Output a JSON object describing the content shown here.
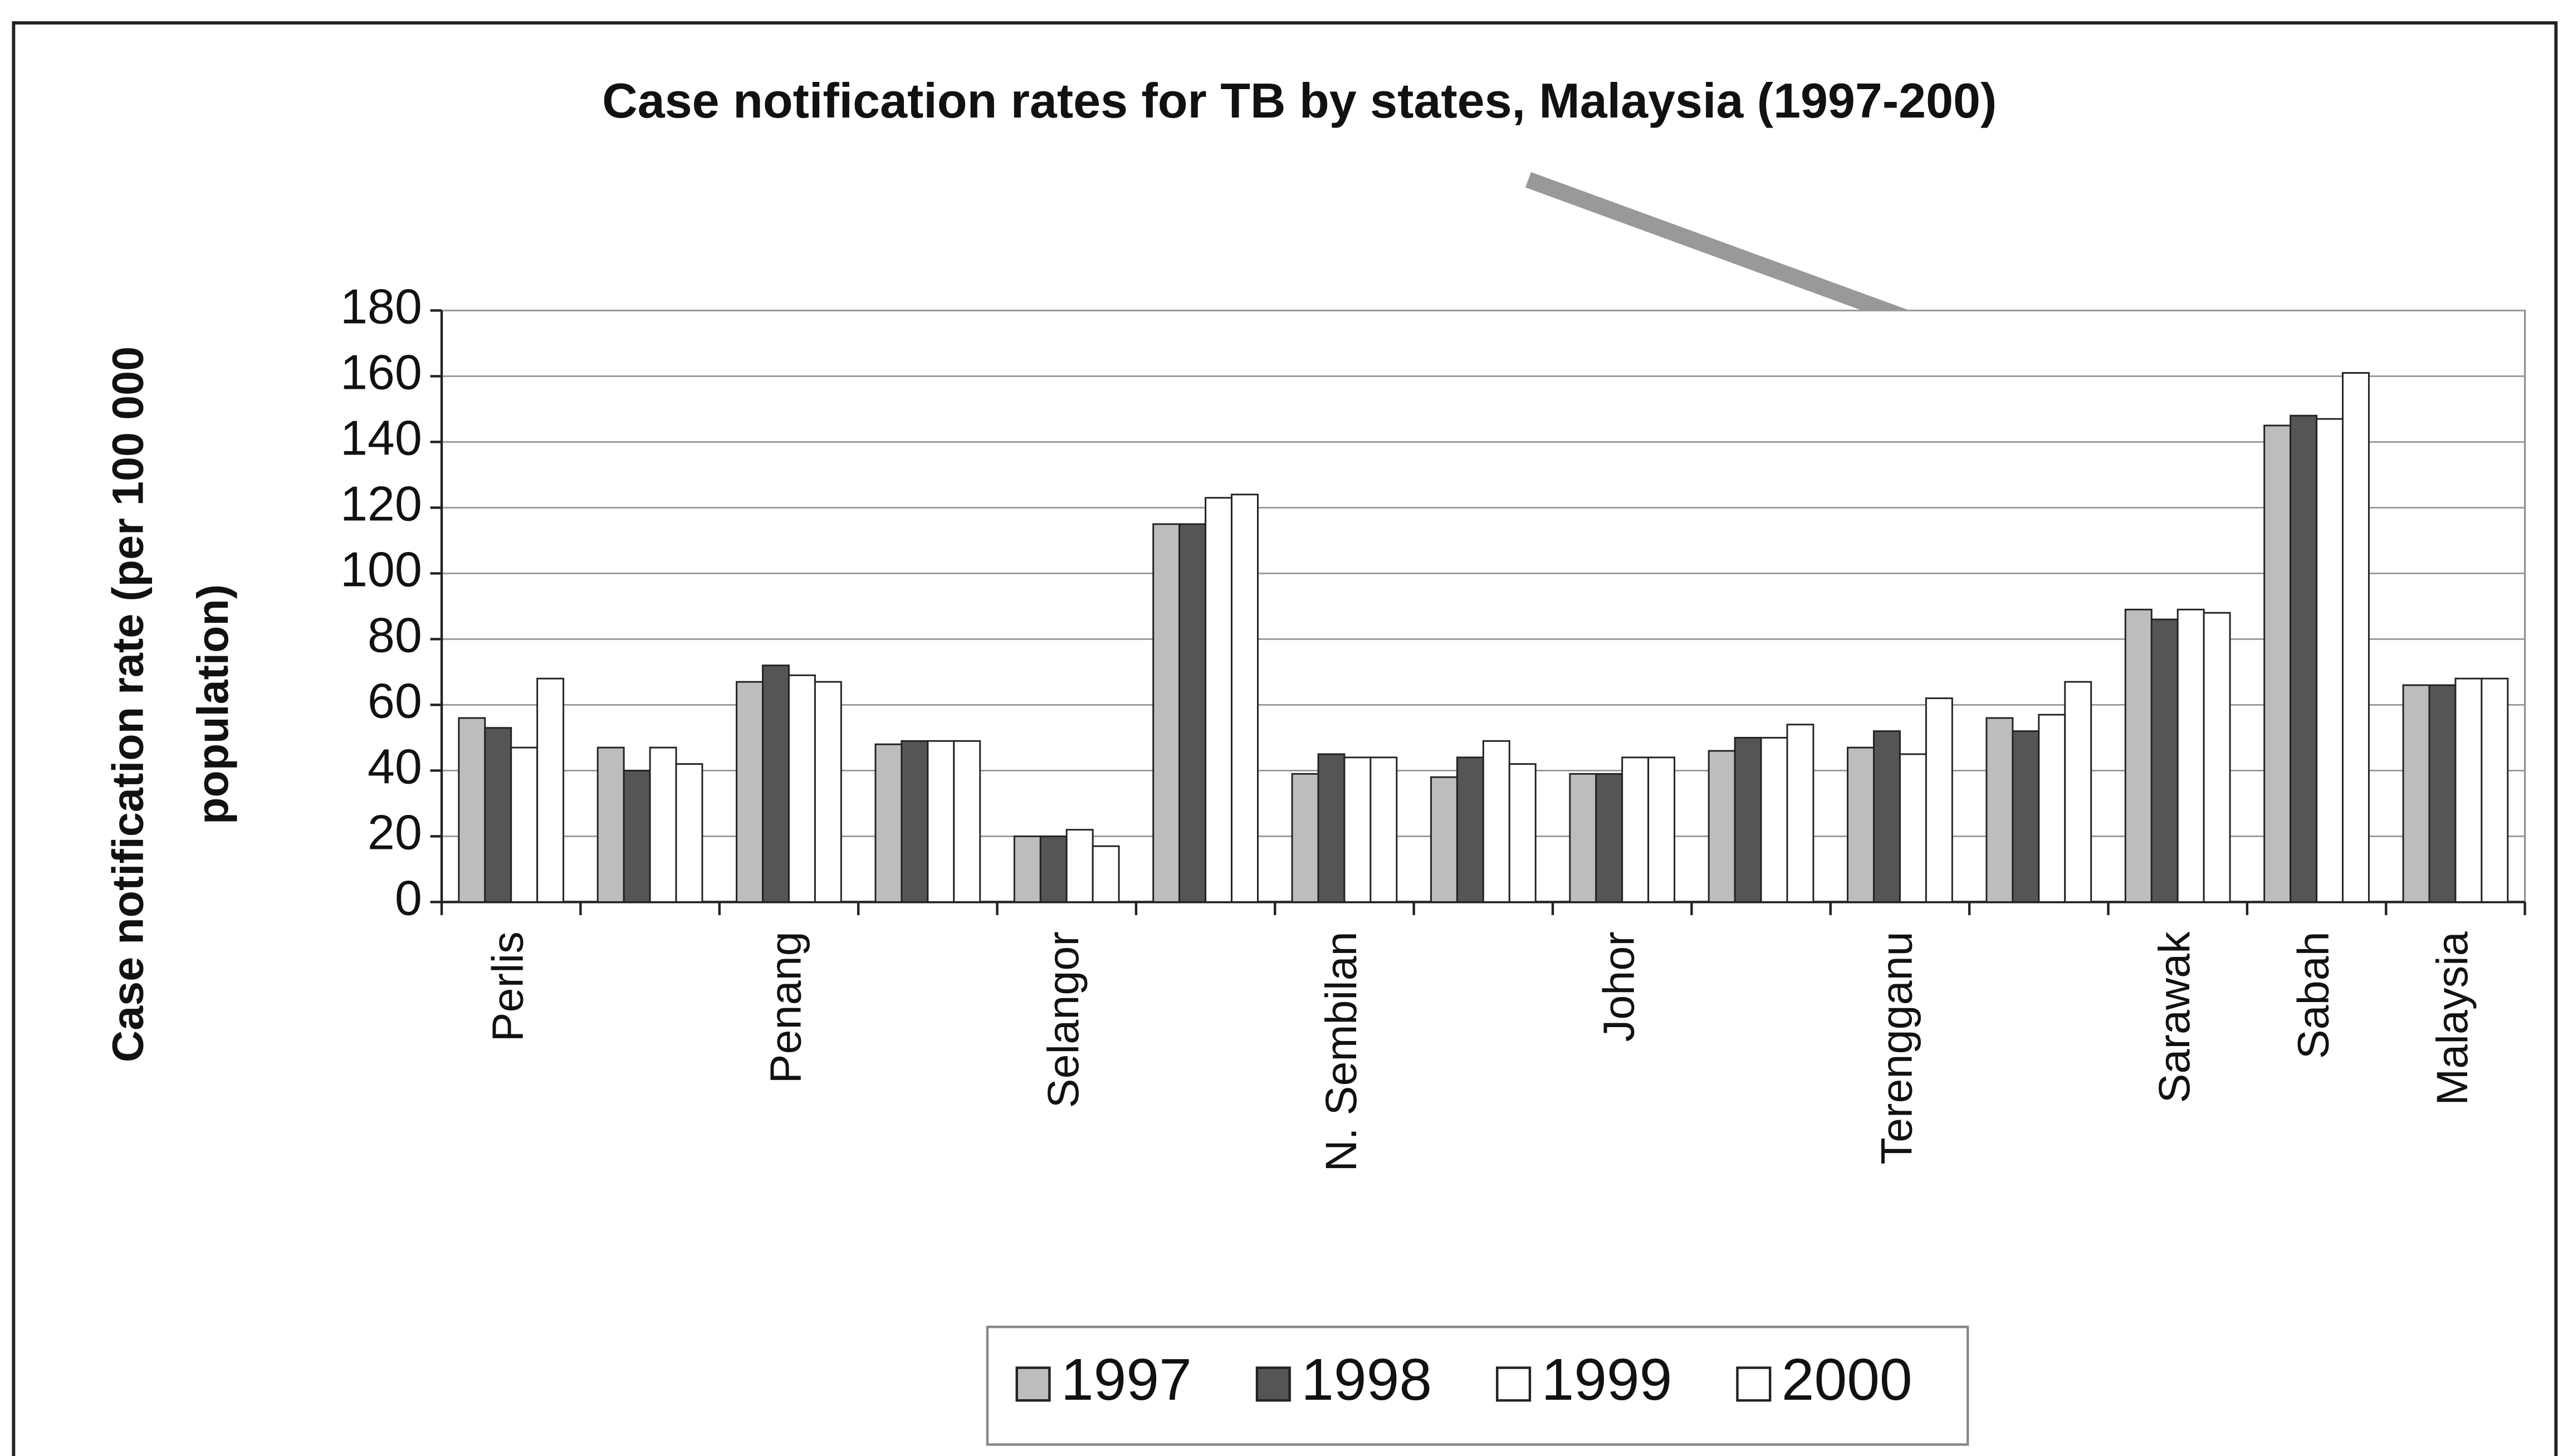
{
  "chart_data": {
    "type": "bar",
    "title": "Case notification rates for TB by states, Malaysia (1997-200)",
    "ylabel": [
      "Case notification rate (per 100 000",
      "population)"
    ],
    "categories": [
      "Perlis",
      null,
      "Penang",
      null,
      "Selangor",
      null,
      "N. Sembilan",
      null,
      "Johor",
      null,
      "Terengganu",
      null,
      "Sarawak",
      "Sabah",
      "Malaysia"
    ],
    "series": [
      {
        "name": "1997",
        "color": "#bdbdbd",
        "values": [
          56,
          47,
          67,
          48,
          20,
          115,
          39,
          38,
          39,
          46,
          47,
          56,
          89,
          145,
          66
        ]
      },
      {
        "name": "1998",
        "color": "#555555",
        "values": [
          53,
          40,
          72,
          49,
          20,
          115,
          45,
          44,
          39,
          50,
          52,
          52,
          86,
          148,
          66
        ]
      },
      {
        "name": "1999",
        "color": "#ffffff",
        "values": [
          47,
          47,
          69,
          49,
          22,
          123,
          44,
          49,
          44,
          50,
          45,
          57,
          89,
          147,
          68
        ]
      },
      {
        "name": "2000",
        "color": "#ffffff",
        "values": [
          68,
          42,
          67,
          49,
          17,
          124,
          44,
          42,
          44,
          54,
          62,
          67,
          88,
          161,
          68
        ]
      }
    ],
    "ylim": [
      0,
      180
    ],
    "yticks": [
      0,
      20,
      40,
      60,
      80,
      100,
      120,
      140,
      160,
      180
    ],
    "grid": true,
    "legend": "bottom"
  }
}
